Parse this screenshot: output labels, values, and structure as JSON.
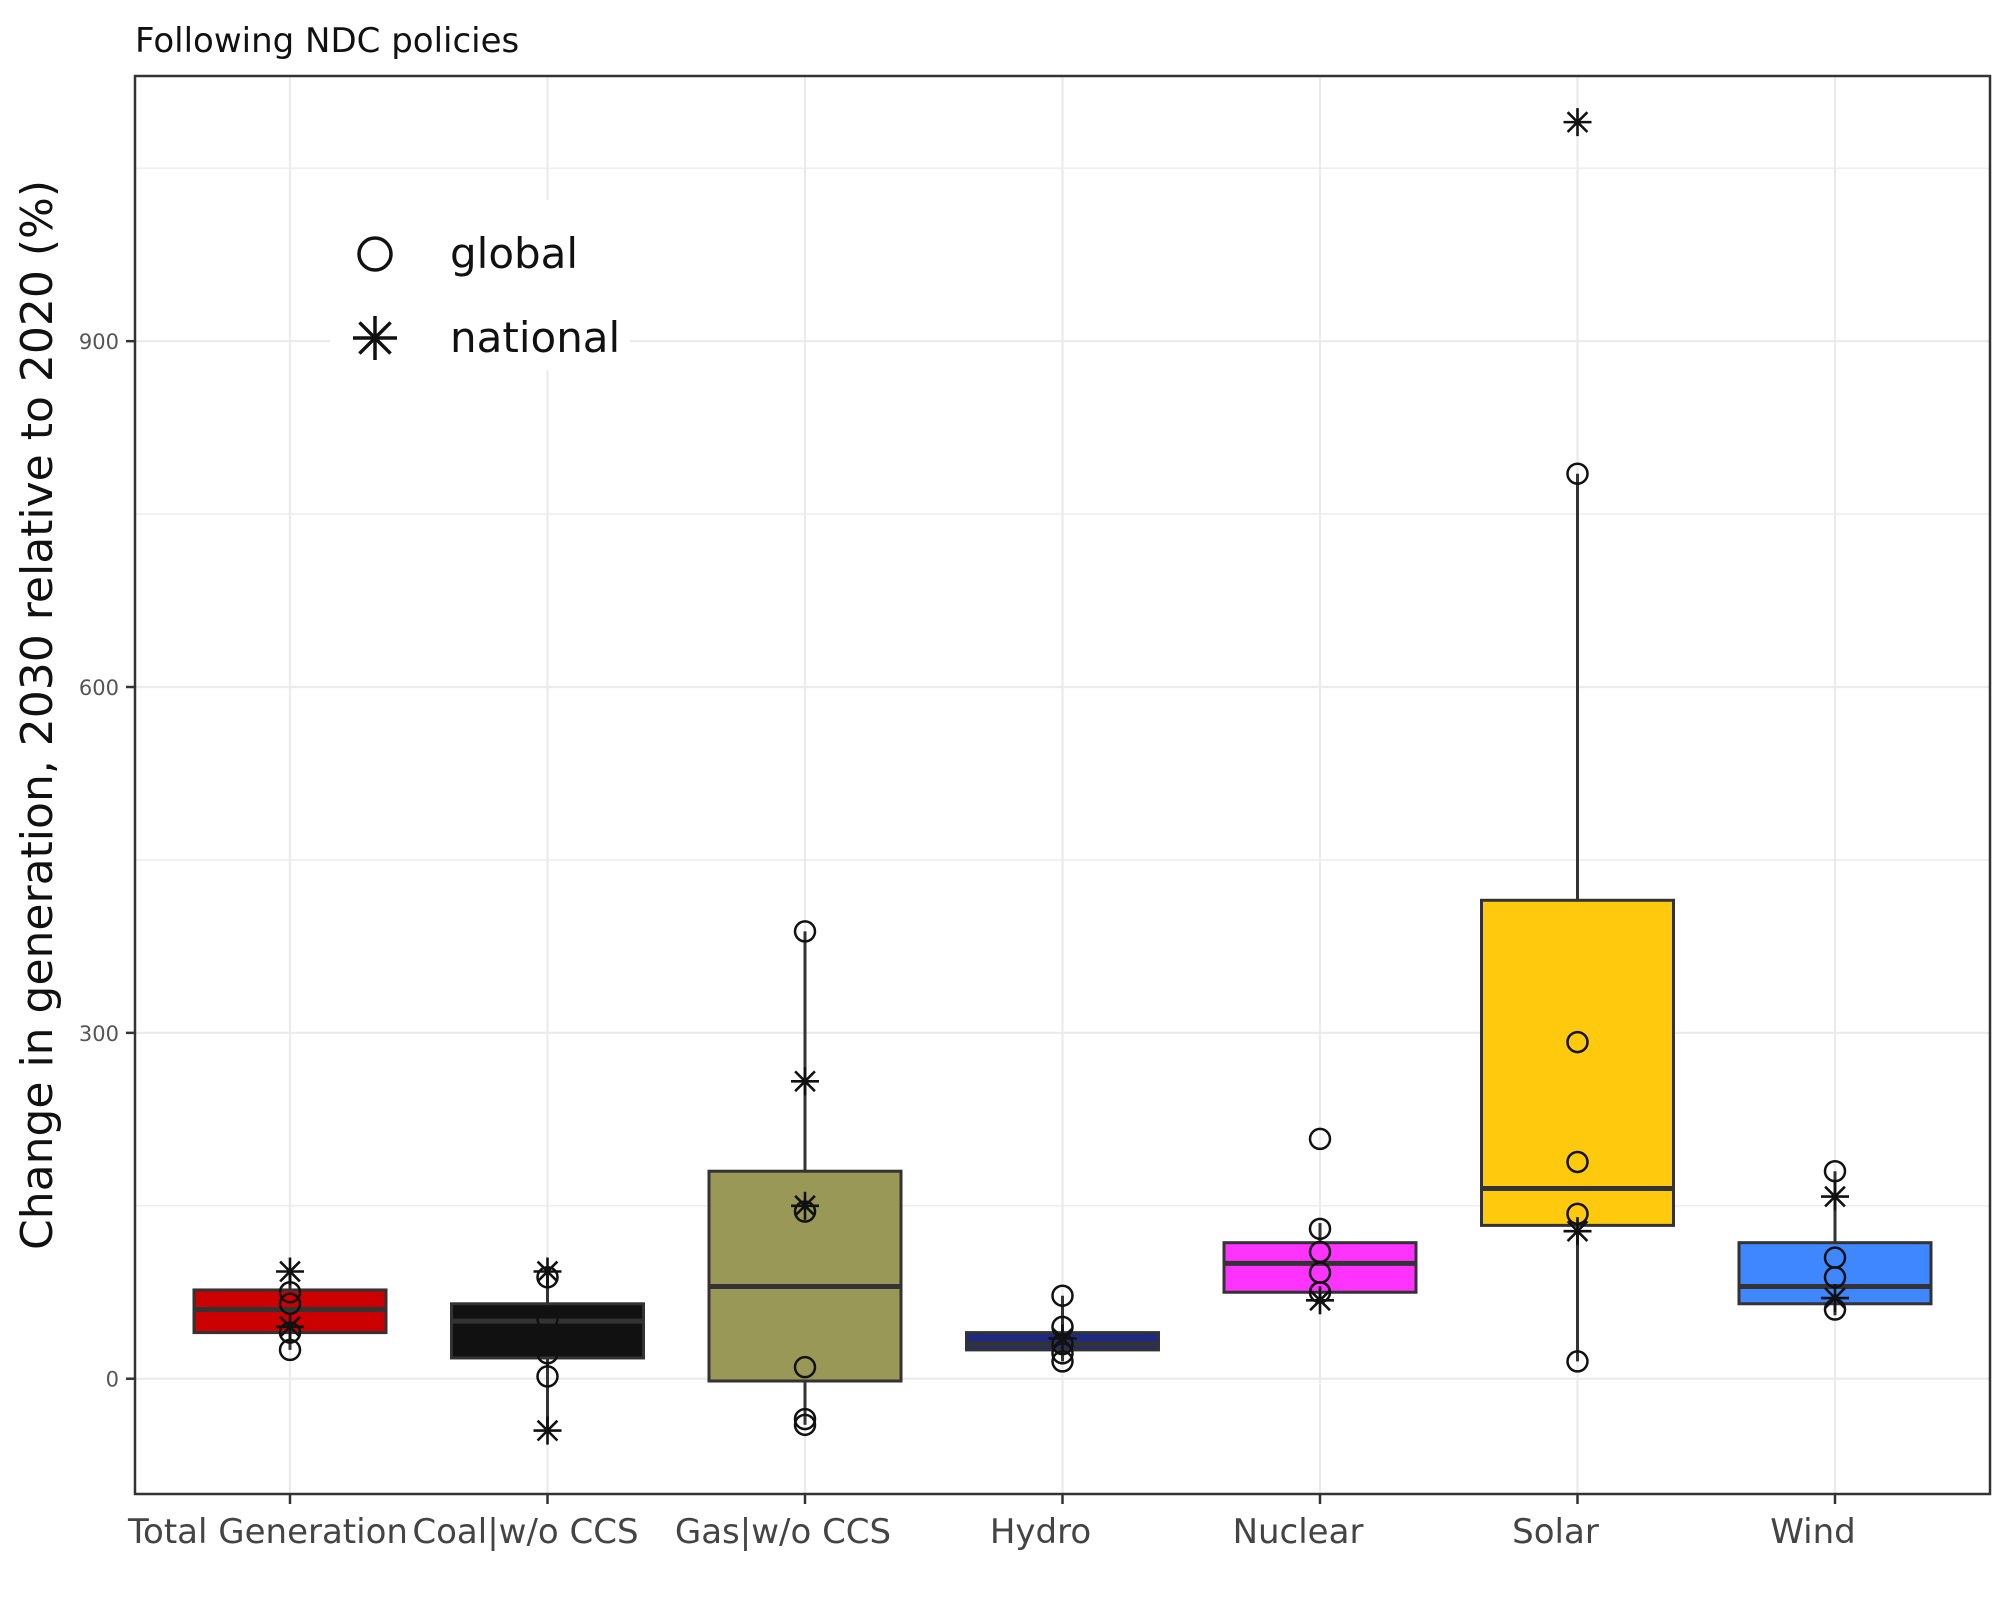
{
  "chart_data": {
    "type": "box",
    "title": "Following NDC policies",
    "ylabel": "Change in generation, 2030 relative to 2020 (%)",
    "xlabel": "",
    "ylim": [
      -100,
      1130
    ],
    "yticks": [
      0,
      300,
      600,
      900
    ],
    "grid": true,
    "legend": {
      "placement": "top-left",
      "entries": [
        {
          "label": "global",
          "marker": "circle"
        },
        {
          "label": "national",
          "marker": "asterisk"
        }
      ]
    },
    "categories": [
      "Total Generation",
      "Coal|w/o CCS",
      "Gas|w/o CCS",
      "Hydro",
      "Nuclear",
      "Solar",
      "Wind"
    ],
    "boxes": [
      {
        "category": "Total Generation",
        "color": "#cc0000",
        "q1": 40,
        "median": 60,
        "q3": 77,
        "whisker_low": 25,
        "whisker_high": 90,
        "global": [
          25,
          40,
          65,
          75
        ],
        "national": [
          45,
          93
        ]
      },
      {
        "category": "Coal|w/o CCS",
        "color": "#111111",
        "q1": 18,
        "median": 50,
        "q3": 65,
        "whisker_low": -45,
        "whisker_high": 93,
        "global": [
          2,
          22,
          52,
          88
        ],
        "national": [
          -45,
          93
        ]
      },
      {
        "category": "Gas|w/o CCS",
        "color": "#9a9857",
        "q1": -2,
        "median": 80,
        "q3": 180,
        "whisker_low": -40,
        "whisker_high": 388,
        "global": [
          -40,
          -35,
          10,
          145,
          388
        ],
        "national": [
          150,
          258
        ]
      },
      {
        "category": "Hydro",
        "color": "#1f2a80",
        "q1": 25,
        "median": 30,
        "q3": 40,
        "whisker_low": 15,
        "whisker_high": 72,
        "global": [
          15,
          22,
          30,
          45,
          72
        ],
        "national": [
          35
        ]
      },
      {
        "category": "Nuclear",
        "color": "#ff33ff",
        "q1": 75,
        "median": 100,
        "q3": 118,
        "whisker_low": 65,
        "whisker_high": 135,
        "global": [
          75,
          92,
          110,
          130,
          208
        ],
        "national": [
          68
        ]
      },
      {
        "category": "Solar",
        "color": "#ffc90e",
        "q1": 133,
        "median": 165,
        "q3": 415,
        "whisker_low": 15,
        "whisker_high": 785,
        "global": [
          15,
          143,
          188,
          292,
          785
        ],
        "national": [
          128,
          1090
        ]
      },
      {
        "category": "Wind",
        "color": "#3f87ff",
        "q1": 65,
        "median": 80,
        "q3": 118,
        "whisker_low": 55,
        "whisker_high": 180,
        "global": [
          60,
          88,
          105,
          180
        ],
        "national": [
          70,
          158
        ]
      }
    ]
  },
  "colors": {
    "grid": "#ebebeb",
    "box_outline": "#333333",
    "panel_border": "#333333"
  }
}
